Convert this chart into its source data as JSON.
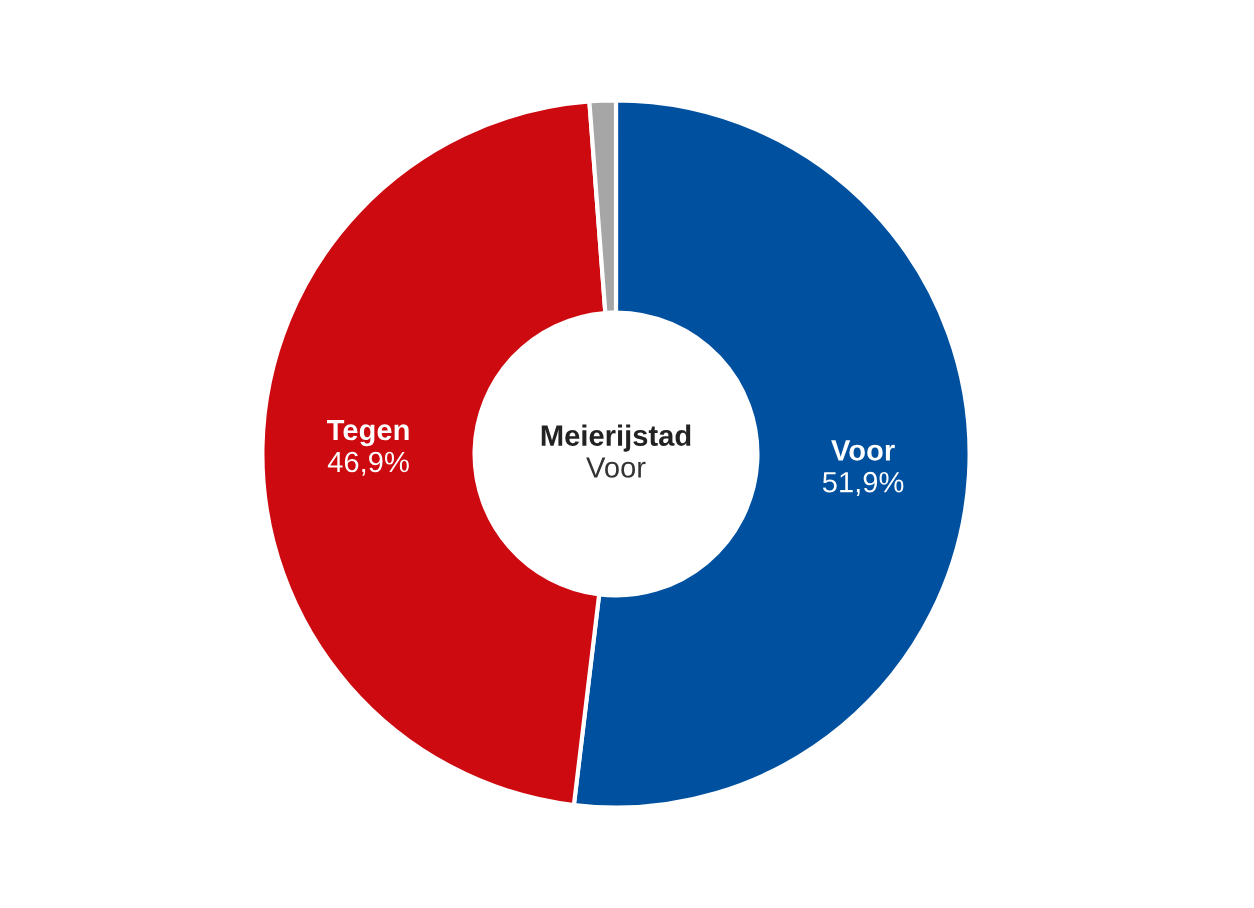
{
  "chart_data": {
    "type": "donut",
    "title": "Meierijstad",
    "subtitle": "Voor",
    "categories": [
      "Voor",
      "Tegen",
      null
    ],
    "values": [
      51.9,
      46.9,
      1.2
    ],
    "value_labels": [
      "51,9%",
      "46,9%",
      null
    ],
    "colors": [
      "#0050a0",
      "#cc0a10",
      "#a6a6a6"
    ]
  }
}
